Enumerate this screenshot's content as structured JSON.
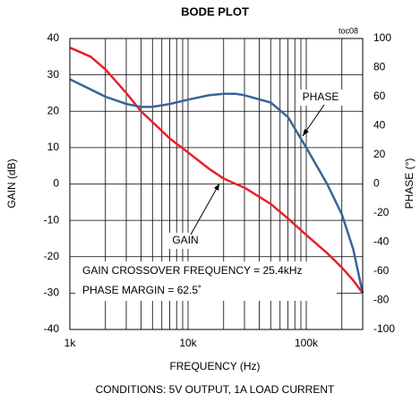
{
  "chart_data": {
    "type": "line",
    "title": "BODE PLOT",
    "tag": "toc08",
    "x_label": "FREQUENCY (Hz)",
    "y_label": "GAIN (dB)",
    "y2_label": "PHASE (°)",
    "footer": "CONDITIONS: 5V OUTPUT, 1A LOAD CURRENT",
    "annotations": [
      "PHASE",
      "GAIN",
      "GAIN CROSSOVER FREQUENCY = 25.4kHz",
      "PHASE MARGIN = 62.5˚"
    ],
    "log_x": true,
    "grid": true,
    "xlim": [
      1000,
      300000
    ],
    "xticks": [
      {
        "value": 1000,
        "label": "1k"
      },
      {
        "value": 10000,
        "label": "10k"
      },
      {
        "value": 100000,
        "label": "100k"
      }
    ],
    "ylim": [
      -40,
      40
    ],
    "yticks": [
      -40,
      -30,
      -20,
      -10,
      0,
      10,
      20,
      30,
      40
    ],
    "y2lim": [
      -100,
      100
    ],
    "y2ticks": [
      -100,
      -80,
      -60,
      -40,
      -20,
      0,
      20,
      40,
      60,
      80,
      100
    ],
    "x": [
      1000,
      1500,
      2000,
      3000,
      4000,
      5000,
      7000,
      10000,
      15000,
      20000,
      25400,
      30000,
      50000,
      70000,
      100000,
      150000,
      200000,
      250000,
      300000
    ],
    "series": [
      {
        "name": "GAIN",
        "color": "#e8202a",
        "values": [
          37.5,
          35,
          31.5,
          25,
          20,
          17,
          12.5,
          8.7,
          4.2,
          1.5,
          0,
          -1,
          -5.5,
          -9.5,
          -14,
          -19,
          -23,
          -26.5,
          -30
        ]
      },
      {
        "name": "PHASE",
        "color": "#3a6496",
        "axis": "y2",
        "values": [
          72,
          65,
          60,
          55,
          53,
          53,
          55,
          58,
          61,
          62,
          62,
          61,
          56,
          46,
          25,
          0,
          -21,
          -45,
          -75
        ]
      }
    ]
  }
}
